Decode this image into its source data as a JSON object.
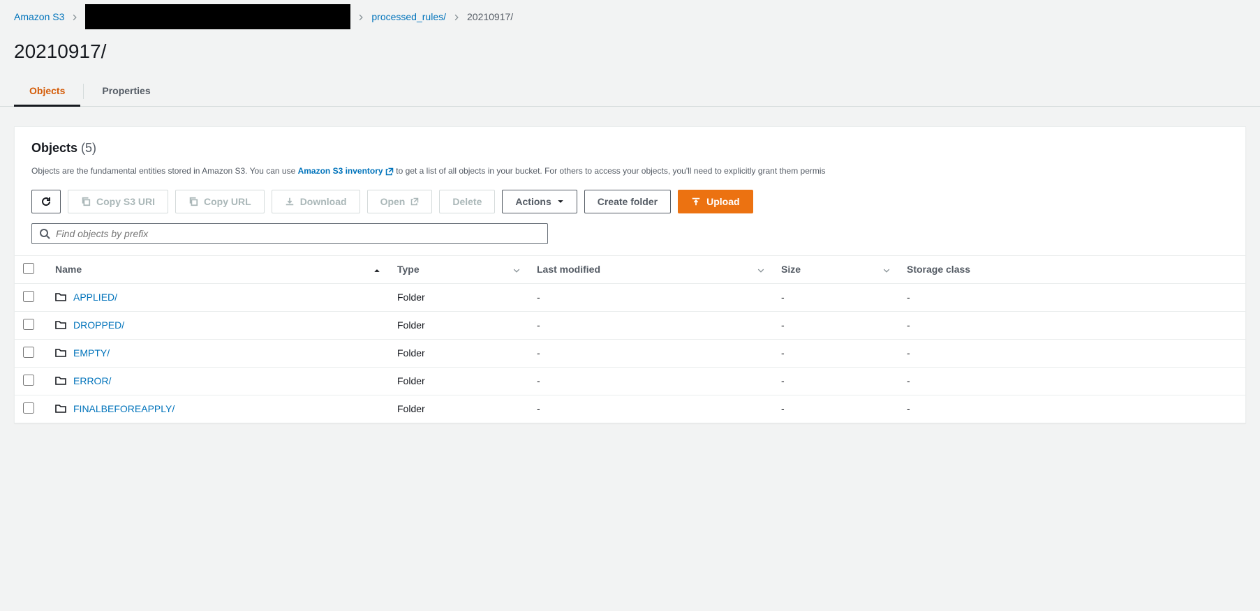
{
  "breadcrumb": {
    "root": "Amazon S3",
    "mid": "processed_rules/",
    "current": "20210917/"
  },
  "page_title": "20210917/",
  "tabs": {
    "objects": "Objects",
    "properties": "Properties"
  },
  "panel": {
    "title": "Objects",
    "count": "(5)",
    "desc_pre": "Objects are the fundamental entities stored in Amazon S3. You can use ",
    "desc_link": "Amazon S3 inventory",
    "desc_post": " to get a list of all objects in your bucket. For others to access your objects, you'll need to explicitly grant them permis"
  },
  "toolbar": {
    "copy_s3": "Copy S3 URI",
    "copy_url": "Copy URL",
    "download": "Download",
    "open": "Open",
    "delete": "Delete",
    "actions": "Actions",
    "create_folder": "Create folder",
    "upload": "Upload"
  },
  "search": {
    "placeholder": "Find objects by prefix"
  },
  "columns": {
    "name": "Name",
    "type": "Type",
    "modified": "Last modified",
    "size": "Size",
    "storage": "Storage class"
  },
  "rows": [
    {
      "name": "APPLIED/",
      "type": "Folder",
      "modified": "-",
      "size": "-",
      "storage": "-"
    },
    {
      "name": "DROPPED/",
      "type": "Folder",
      "modified": "-",
      "size": "-",
      "storage": "-"
    },
    {
      "name": "EMPTY/",
      "type": "Folder",
      "modified": "-",
      "size": "-",
      "storage": "-"
    },
    {
      "name": "ERROR/",
      "type": "Folder",
      "modified": "-",
      "size": "-",
      "storage": "-"
    },
    {
      "name": "FINALBEFOREAPPLY/",
      "type": "Folder",
      "modified": "-",
      "size": "-",
      "storage": "-"
    }
  ],
  "colors": {
    "link": "#0073bb",
    "accent": "#ec7211",
    "text": "#16191f",
    "muted": "#545b64",
    "border": "#eaeded",
    "page_bg": "#f2f3f3"
  }
}
